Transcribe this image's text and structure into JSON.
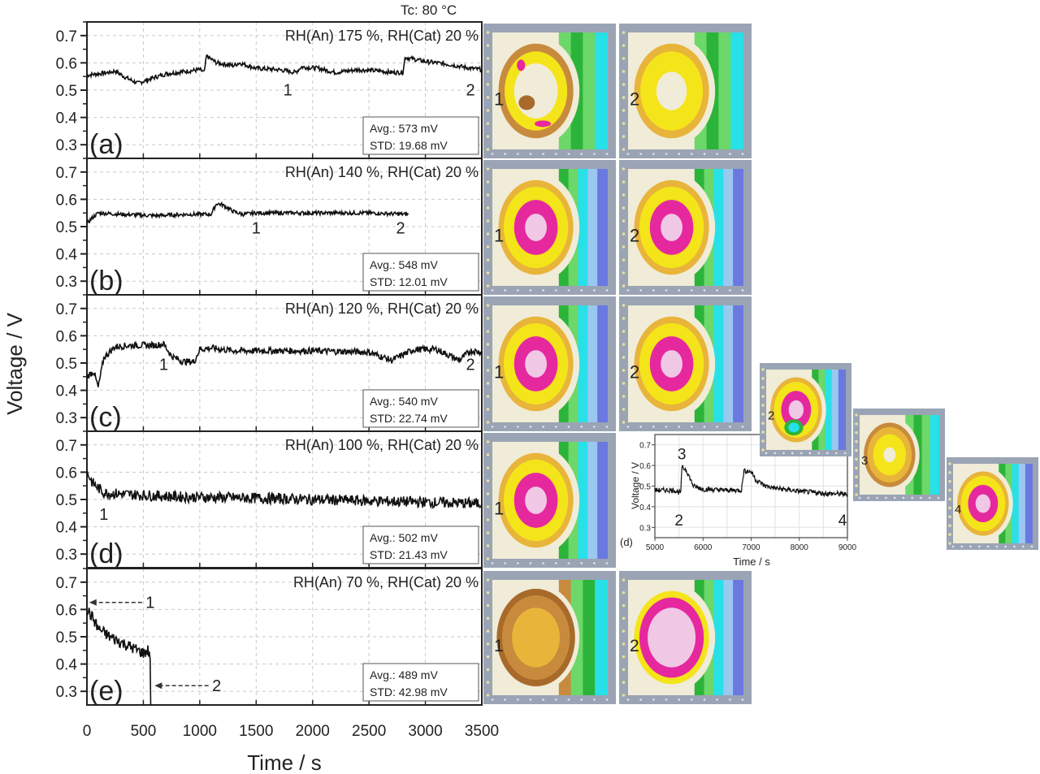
{
  "chart_data": [
    {
      "type": "line",
      "panel": "(a)",
      "title": "RH(An) 175 %, RH(Cat) 20 %",
      "xlabel": "Time / s",
      "ylabel": "Voltage / V",
      "xlim": [
        0,
        3500
      ],
      "ylim": [
        0.25,
        0.75
      ],
      "x": [
        0,
        200,
        250,
        350,
        450,
        550,
        700,
        800,
        900,
        1000,
        1040,
        1060,
        1150,
        1300,
        1350,
        1500,
        1700,
        1850,
        1900,
        2050,
        2200,
        2400,
        2600,
        2700,
        2800,
        2820,
        3000,
        3200,
        3400,
        3500
      ],
      "values": [
        0.555,
        0.565,
        0.57,
        0.545,
        0.525,
        0.54,
        0.56,
        0.565,
        0.57,
        0.575,
        0.565,
        0.625,
        0.6,
        0.59,
        0.6,
        0.58,
        0.575,
        0.565,
        0.585,
        0.58,
        0.565,
        0.575,
        0.57,
        0.565,
        0.565,
        0.62,
        0.605,
        0.595,
        0.58,
        0.575
      ],
      "annotations": [
        {
          "text": "1",
          "x": 1780,
          "y": 0.48
        },
        {
          "text": "2",
          "x": 3400,
          "y": 0.48
        }
      ],
      "stats": {
        "avg": "Avg.: 573 mV",
        "std": "STD: 19.68 mV"
      },
      "noise": 0.008
    },
    {
      "type": "line",
      "panel": "(b)",
      "title": "RH(An) 140 %, RH(Cat) 20 %",
      "xlim": [
        0,
        3500
      ],
      "ylim": [
        0.25,
        0.75
      ],
      "x": [
        0,
        40,
        100,
        300,
        600,
        900,
        1100,
        1150,
        1200,
        1300,
        1380,
        1500,
        2000,
        2500,
        2850
      ],
      "values": [
        0.51,
        0.53,
        0.55,
        0.545,
        0.54,
        0.545,
        0.545,
        0.585,
        0.58,
        0.555,
        0.545,
        0.55,
        0.55,
        0.55,
        0.545
      ],
      "annotations": [
        {
          "text": "1",
          "x": 1500,
          "y": 0.475
        },
        {
          "text": "2",
          "x": 2780,
          "y": 0.475
        }
      ],
      "stats": {
        "avg": "Avg.: 548 mV",
        "std": "STD: 12.01 mV"
      },
      "noise": 0.007
    },
    {
      "type": "line",
      "panel": "(c)",
      "title": "RH(An) 120 %, RH(Cat) 20 %",
      "xlim": [
        0,
        3500
      ],
      "ylim": [
        0.25,
        0.75
      ],
      "x": [
        0,
        60,
        100,
        150,
        250,
        400,
        600,
        680,
        750,
        850,
        950,
        1000,
        1100,
        1300,
        1500,
        2000,
        2500,
        2700,
        2900,
        3100,
        3300,
        3400,
        3500
      ],
      "values": [
        0.45,
        0.47,
        0.41,
        0.52,
        0.56,
        0.565,
        0.565,
        0.57,
        0.525,
        0.505,
        0.505,
        0.55,
        0.555,
        0.545,
        0.545,
        0.545,
        0.54,
        0.51,
        0.55,
        0.55,
        0.51,
        0.545,
        0.54
      ],
      "annotations": [
        {
          "text": "1",
          "x": 680,
          "y": 0.475
        },
        {
          "text": "2",
          "x": 3400,
          "y": 0.475
        }
      ],
      "stats": {
        "avg": "Avg.: 540 mV",
        "std": "STD: 22.74 mV"
      },
      "noise": 0.012
    },
    {
      "type": "line",
      "panel": "(d)",
      "title": "RH(An) 100 %, RH(Cat) 20 %",
      "xlim": [
        0,
        3500
      ],
      "ylim": [
        0.25,
        0.75
      ],
      "x": [
        0,
        50,
        150,
        300,
        800,
        1500,
        2000,
        2500,
        3000,
        3500
      ],
      "values": [
        0.6,
        0.56,
        0.525,
        0.52,
        0.51,
        0.505,
        0.5,
        0.495,
        0.49,
        0.485
      ],
      "annotations": [
        {
          "text": "1",
          "x": 150,
          "y": 0.425
        }
      ],
      "stats": {
        "avg": "Avg.: 502 mV",
        "std": "STD: 21.43 mV"
      },
      "noise": 0.02
    },
    {
      "type": "line",
      "panel": "(e)",
      "title": "RH(An) 70 %, RH(Cat) 20 %",
      "xlim": [
        0,
        3500
      ],
      "ylim": [
        0.25,
        0.75
      ],
      "x": [
        0,
        50,
        100,
        200,
        300,
        400,
        500,
        540,
        560,
        565
      ],
      "values": [
        0.6,
        0.57,
        0.53,
        0.5,
        0.48,
        0.46,
        0.44,
        0.45,
        0.43,
        0.25
      ],
      "annotations": [
        {
          "text": "1",
          "x": 560,
          "y": 0.605,
          "arrow_to": [
            20,
            0.605
          ]
        },
        {
          "text": "2",
          "x": 1150,
          "y": 0.3,
          "arrow_to": [
            600,
            0.3
          ]
        }
      ],
      "stats": {
        "avg": "Avg.: 489 mV",
        "std": "STD: 42.98 mV"
      },
      "noise": 0.022
    },
    {
      "type": "line",
      "panel": "(d) inset",
      "xlabel": "Time / s",
      "ylabel": "Voltage / V",
      "xlim": [
        5000,
        9000
      ],
      "ylim": [
        0.25,
        0.75
      ],
      "xticks": [
        5000,
        6000,
        7000,
        8000,
        9000
      ],
      "yticks": [
        0.3,
        0.4,
        0.5,
        0.6,
        0.7
      ],
      "x": [
        5000,
        5400,
        5500,
        5540,
        5560,
        5650,
        5800,
        6000,
        6500,
        6800,
        6850,
        7000,
        7100,
        7300,
        7500,
        8000,
        8500,
        9000
      ],
      "values": [
        0.48,
        0.48,
        0.47,
        0.47,
        0.59,
        0.58,
        0.5,
        0.485,
        0.48,
        0.48,
        0.575,
        0.57,
        0.53,
        0.5,
        0.49,
        0.475,
        0.465,
        0.46
      ],
      "annotations": [
        {
          "text": "2",
          "x": 5500,
          "y": 0.31
        },
        {
          "text": "3",
          "x": 5560,
          "y": 0.63
        },
        {
          "text": "4",
          "x": 8900,
          "y": 0.31
        }
      ],
      "noise": 0.012
    }
  ],
  "figure": {
    "header": "Tc: 80 °C",
    "ylabel": "Voltage / V",
    "xlabel": "Time / s",
    "xticks": [
      "0",
      "500",
      "1000",
      "1500",
      "2000",
      "2500",
      "3000",
      "3500"
    ],
    "yticks": [
      "0.3",
      "0.4",
      "0.5",
      "0.6",
      "0.7"
    ],
    "inset_label": "(d)",
    "inset_xticks": [
      "5000",
      "6000",
      "7000",
      "8000",
      "9000"
    ],
    "inset_yticks": [
      "0.3",
      "0.4",
      "0.5",
      "0.6",
      "0.7"
    ]
  },
  "heatmaps": [
    {
      "row": 0,
      "label": "1",
      "scheme": "a1"
    },
    {
      "row": 0,
      "label": "2",
      "scheme": "a2"
    },
    {
      "row": 1,
      "label": "1",
      "scheme": "pink"
    },
    {
      "row": 1,
      "label": "2",
      "scheme": "pink"
    },
    {
      "row": 2,
      "label": "1",
      "scheme": "pink"
    },
    {
      "row": 2,
      "label": "2",
      "scheme": "pink"
    },
    {
      "row": 3,
      "label": "1",
      "scheme": "pink"
    },
    {
      "row": 3,
      "label": "2",
      "scheme": "pink_spot"
    },
    {
      "row": 3,
      "label": "3",
      "scheme": "yellow"
    },
    {
      "row": 3,
      "label": "4",
      "scheme": "pink"
    },
    {
      "row": 4,
      "label": "1",
      "scheme": "brown"
    },
    {
      "row": 4,
      "label": "2",
      "scheme": "pink_blue"
    }
  ],
  "colors": {
    "line": "#111111",
    "grid": "#c8c8c8",
    "frame": "#9aa4b4",
    "pink": "#e6289f",
    "lightpink": "#f0c8e6",
    "yellow": "#f4e41a",
    "gold": "#e8b43a",
    "tan": "#c88a3c",
    "brown": "#a86a2a",
    "green": "#2cb43a",
    "lightgreen": "#6cd86a",
    "cyan": "#28e0e8",
    "lightblue": "#9ac8f0",
    "blue": "#6a78e0",
    "cream": "#f0ecd8"
  }
}
